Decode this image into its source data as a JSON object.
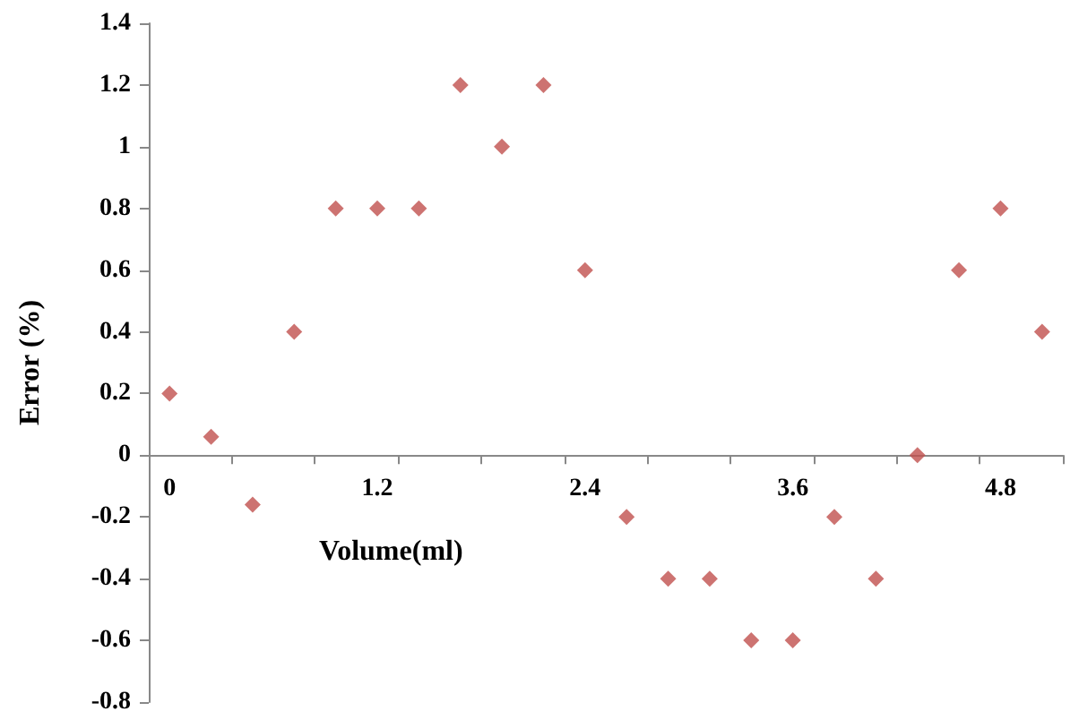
{
  "chart_data": {
    "type": "scatter",
    "xlabel": "Volume(ml)",
    "ylabel": "Error (%)",
    "categories": [
      "0",
      null,
      null,
      null,
      null,
      "1.2",
      null,
      null,
      null,
      null,
      "2.4",
      null,
      null,
      null,
      null,
      "3.6",
      null,
      null,
      null,
      null,
      "4.8",
      null
    ],
    "series": [
      {
        "color": "#c0504d",
        "values": [
          0.2,
          0.06,
          -0.16,
          0.4,
          0.8,
          0.8,
          0.8,
          1.2,
          1.0,
          1.2,
          0.6,
          -0.2,
          -0.4,
          -0.4,
          -0.6,
          -0.6,
          -0.2,
          -0.4,
          0,
          0.6,
          0.8,
          0.4
        ]
      }
    ],
    "ylim": [
      -0.8,
      1.4
    ],
    "yticks": [
      -0.8,
      -0.6,
      -0.4,
      -0.2,
      0,
      0.2,
      0.4,
      0.6,
      0.8,
      1,
      1.2,
      1.4
    ],
    "marker": "diamond"
  }
}
